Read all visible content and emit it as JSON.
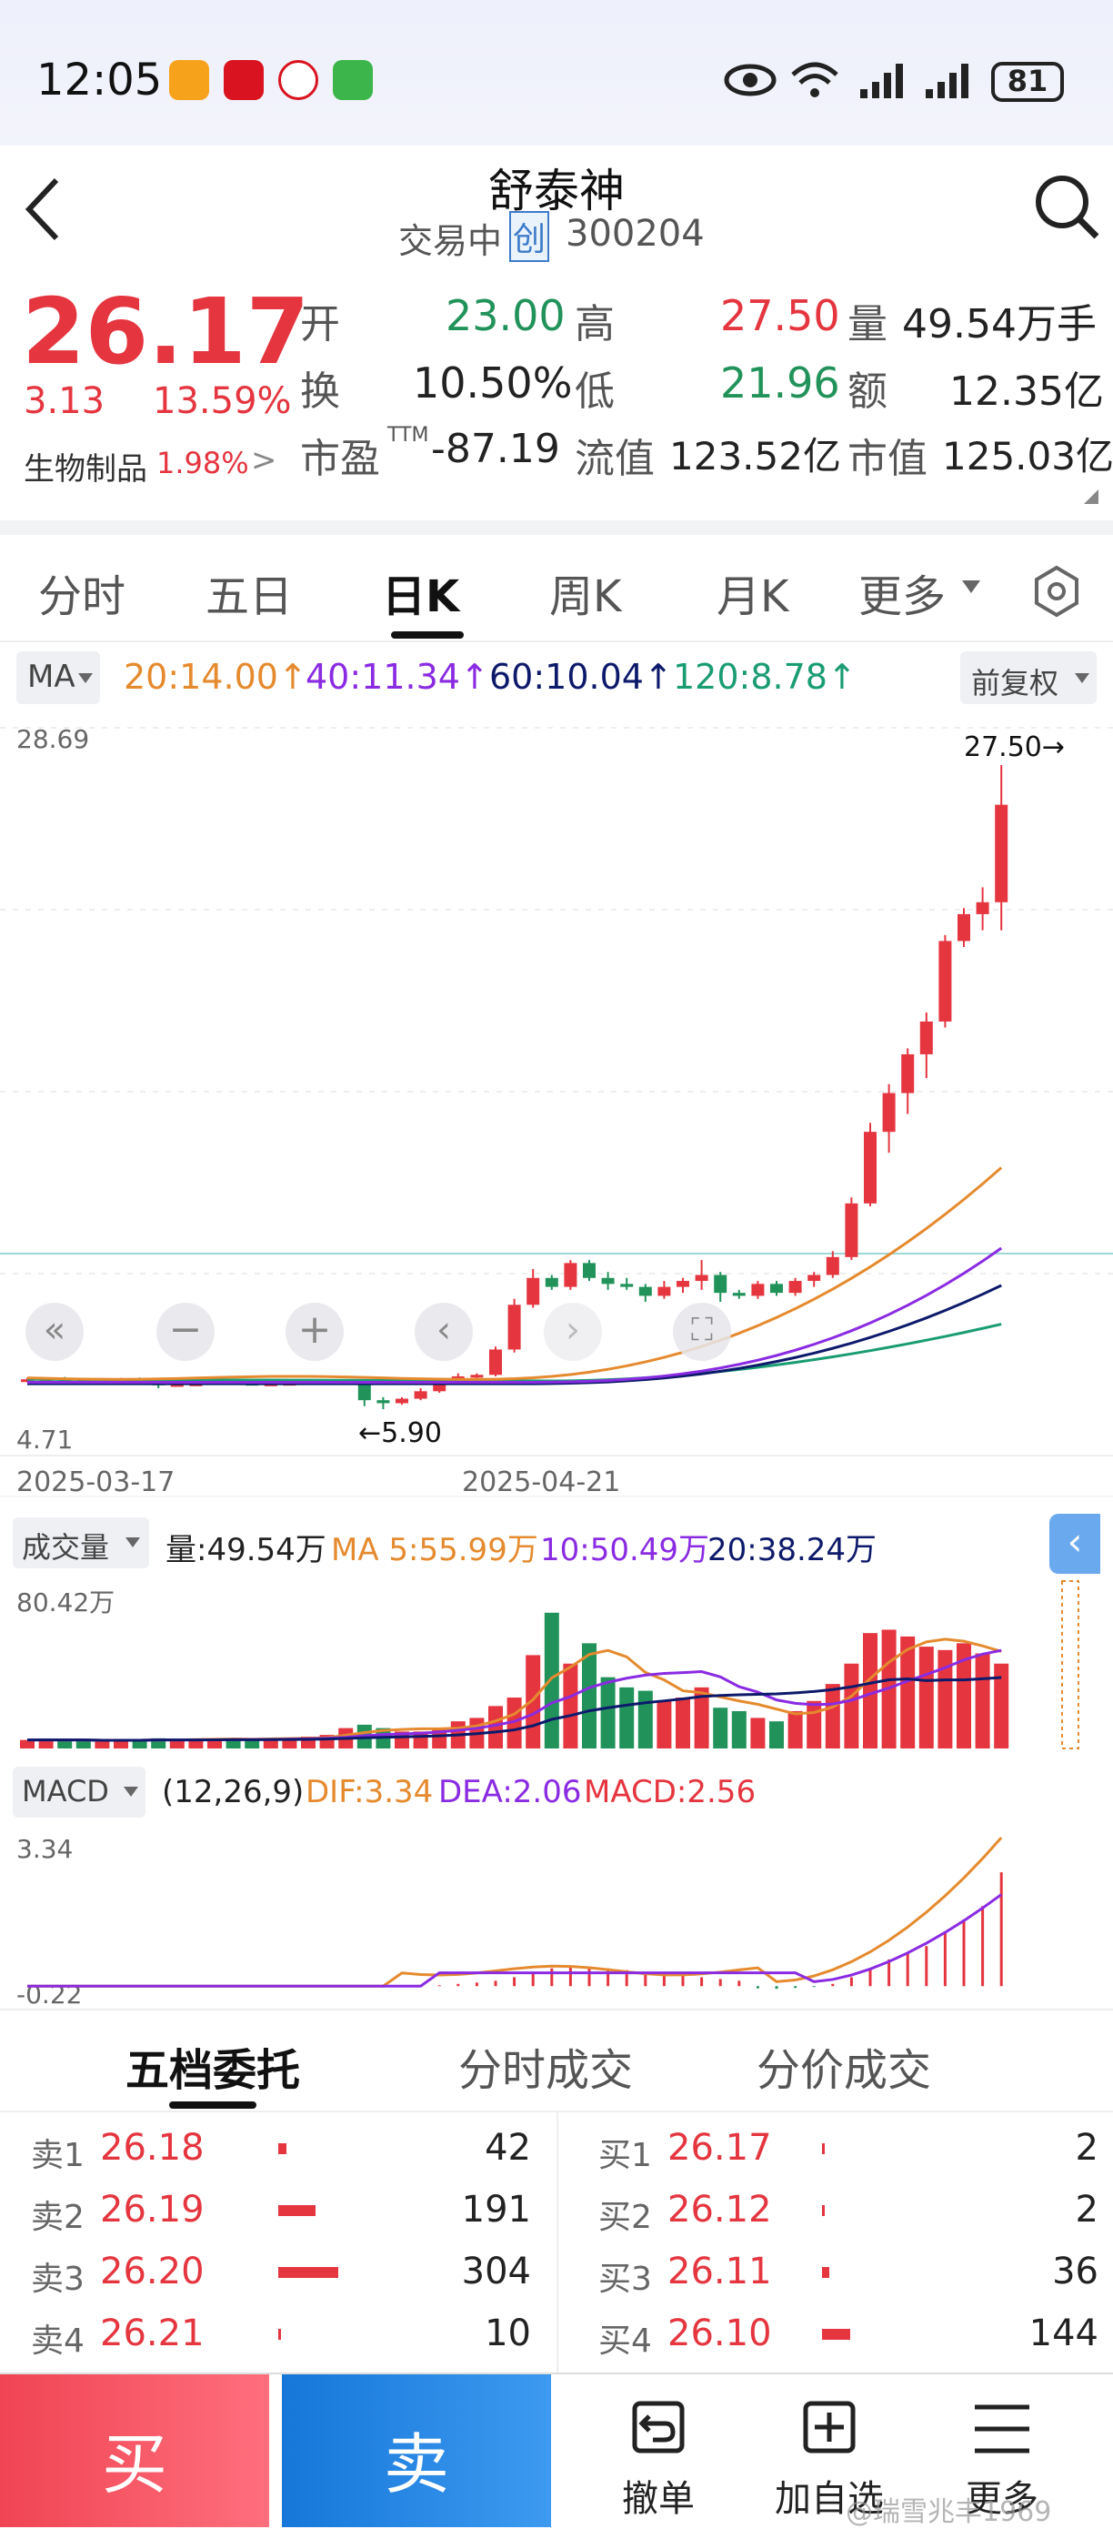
{
  "status_bar": {
    "time": "12:05",
    "battery": "81"
  },
  "header": {
    "title": "舒泰神",
    "status": "交易中",
    "board": "创",
    "code": "300204"
  },
  "quote": {
    "price": "26.17",
    "change": "3.13",
    "change_pct": "13.59%",
    "sector": "生物制品",
    "sector_pct": "1.98%",
    "open_label": "开",
    "open": "23.00",
    "high_label": "高",
    "high": "27.50",
    "vol_label": "量",
    "vol": "49.54万手",
    "turnover_label": "换",
    "turnover": "10.50%",
    "low_label": "低",
    "low": "21.96",
    "amount_label": "额",
    "amount": "12.35亿",
    "pe_label": "市盈",
    "pe_tm": "TTM",
    "pe": "-87.19",
    "float_label": "流值",
    "float_cap": "123.52亿",
    "mcap_label": "市值",
    "mcap": "125.03亿"
  },
  "tabs": [
    {
      "label": "分时"
    },
    {
      "label": "五日"
    },
    {
      "label": "日K"
    },
    {
      "label": "周K"
    },
    {
      "label": "月K"
    },
    {
      "label": "更多"
    }
  ],
  "ma_bar": {
    "label": "MA",
    "ma20": "20:14.00↑",
    "ma40": "40:11.34↑",
    "ma60": "60:10.04↑",
    "ma120": "120:8.78↑",
    "adjust": "前复权"
  },
  "kline": {
    "top": "28.69",
    "bottom": "4.71",
    "high_mark": "27.50→",
    "low_mark": "←5.90",
    "date_left": "2025-03-17",
    "date_mid": "2025-04-21"
  },
  "volume_bar": {
    "label": "成交量",
    "vol": "量:49.54万",
    "ma5": "MA 5:55.99万",
    "ma10": "10:50.49万",
    "ma20": "20:38.24万",
    "max": "80.42万"
  },
  "macd_bar": {
    "label": "MACD",
    "params": "(12,26,9)",
    "dif": "DIF:3.34",
    "dea": "DEA:2.06",
    "macd": "MACD:2.56",
    "top": "3.34",
    "bottom": "-0.22"
  },
  "order_tabs": [
    {
      "label": "五档委托"
    },
    {
      "label": "分时成交"
    },
    {
      "label": "分价成交"
    }
  ],
  "asks": [
    {
      "label": "卖1",
      "price": "26.18",
      "qty": "42"
    },
    {
      "label": "卖2",
      "price": "26.19",
      "qty": "191"
    },
    {
      "label": "卖3",
      "price": "26.20",
      "qty": "304"
    },
    {
      "label": "卖4",
      "price": "26.21",
      "qty": "10"
    }
  ],
  "bids": [
    {
      "label": "买1",
      "price": "26.17",
      "qty": "2"
    },
    {
      "label": "买2",
      "price": "26.12",
      "qty": "2"
    },
    {
      "label": "买3",
      "price": "26.11",
      "qty": "36"
    },
    {
      "label": "买4",
      "price": "26.10",
      "qty": "144"
    }
  ],
  "bottom": {
    "buy": "买",
    "sell": "卖",
    "cancel": "撤单",
    "add_fav": "加自选",
    "more": "更多",
    "watermark": "@瑞雪兆丰1969"
  },
  "colors": {
    "up": "#e5353f",
    "down": "#21935a",
    "ma20": "#e58a2e",
    "ma40": "#8a2be2",
    "ma60": "#0d1a6b",
    "ma120": "#1a9c73"
  }
}
